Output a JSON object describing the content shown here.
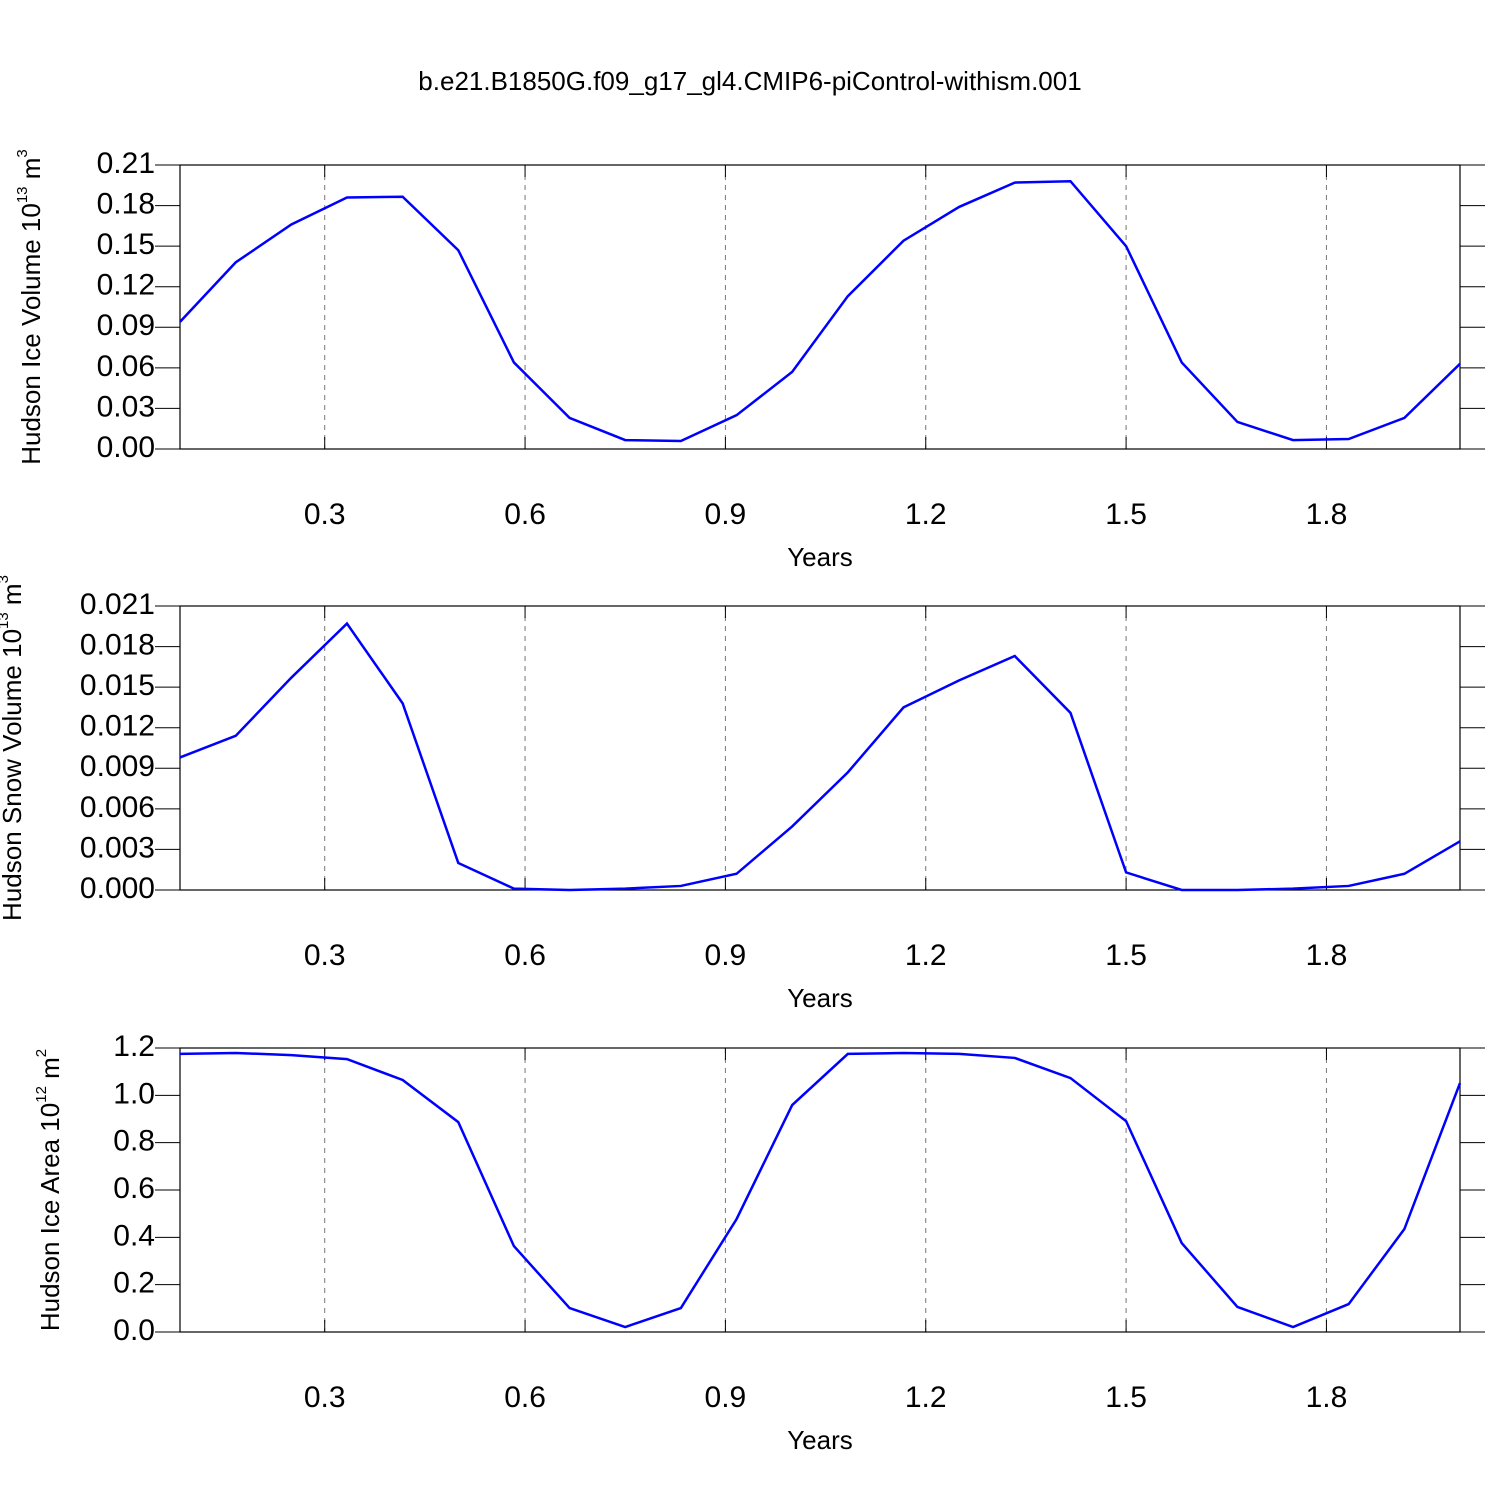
{
  "chart_data": [
    {
      "type": "line",
      "title": "b.e21.B1850G.f09_g17_gl4.CMIP6-piControl-withism.001",
      "xlabel": "Years",
      "ylabel": "Hudson Ice Volume 10",
      "ylabel_exponent": "13",
      "ylabel_unit": " m",
      "ylabel_unit_exponent": "3",
      "x": [
        0.0833,
        0.1667,
        0.25,
        0.3333,
        0.4167,
        0.5,
        0.5833,
        0.6667,
        0.75,
        0.8333,
        0.9167,
        1.0,
        1.0833,
        1.1667,
        1.25,
        1.3333,
        1.4167,
        1.5,
        1.5833,
        1.6667,
        1.75,
        1.8333,
        1.9167,
        2.0
      ],
      "series": [
        {
          "color": "#0000ff",
          "values": [
            0.094,
            0.138,
            0.166,
            0.186,
            0.1865,
            0.147,
            0.064,
            0.023,
            0.0066,
            0.0059,
            0.025,
            0.057,
            0.113,
            0.154,
            0.179,
            0.197,
            0.198,
            0.15,
            0.064,
            0.02,
            0.0066,
            0.0074,
            0.023,
            0.063
          ]
        }
      ],
      "xlim": [
        0.0833,
        2.0
      ],
      "xticks": [
        0.3,
        0.6,
        0.9,
        1.2,
        1.5,
        1.8
      ],
      "ylim": [
        0,
        0.21
      ],
      "yticks": [
        {
          "value": 0,
          "label": "0.00"
        },
        0.03,
        0.06,
        0.09,
        0.12,
        0.15,
        0.18,
        0.21
      ],
      "grid": "x-dashed"
    },
    {
      "type": "line",
      "xlabel": "Years",
      "ylabel": "Hudson Snow Volume 10",
      "ylabel_exponent": "13",
      "ylabel_unit": " m",
      "ylabel_unit_exponent": "3",
      "x": [
        0.0833,
        0.1667,
        0.25,
        0.3333,
        0.4167,
        0.5,
        0.5833,
        0.6667,
        0.75,
        0.8333,
        0.9167,
        1.0,
        1.0833,
        1.1667,
        1.25,
        1.3333,
        1.4167,
        1.5,
        1.5833,
        1.6667,
        1.75,
        1.8333,
        1.9167,
        2.0
      ],
      "series": [
        {
          "color": "#0000ff",
          "values": [
            0.0098,
            0.0114,
            0.0157,
            0.0197,
            0.0138,
            0.002,
            0.0001,
            0,
            0.0001,
            0.0003,
            0.0012,
            0.0047,
            0.0087,
            0.0135,
            0.0155,
            0.0173,
            0.0131,
            0.0013,
            0,
            0,
            0.0001,
            0.0003,
            0.0012,
            0.0036
          ]
        }
      ],
      "xlim": [
        0.0833,
        2.0
      ],
      "xticks": [
        0.3,
        0.6,
        0.9,
        1.2,
        1.5,
        1.8
      ],
      "ylim": [
        0,
        0.021
      ],
      "yticks": [
        {
          "value": 0,
          "label": "0.000"
        },
        0.003,
        0.006,
        0.009,
        0.012,
        0.015,
        0.018,
        0.021
      ],
      "grid": "x-dashed"
    },
    {
      "type": "line",
      "xlabel": "Years",
      "ylabel": "Hudson Ice Area 10",
      "ylabel_exponent": "12",
      "ylabel_unit": " m",
      "ylabel_unit_exponent": "2",
      "x": [
        0.0833,
        0.1667,
        0.25,
        0.3333,
        0.4167,
        0.5,
        0.5833,
        0.6667,
        0.75,
        0.8333,
        0.9167,
        1.0,
        1.0833,
        1.1667,
        1.25,
        1.3333,
        1.4167,
        1.5,
        1.5833,
        1.6667,
        1.75,
        1.8333,
        1.9167,
        2.0
      ],
      "series": [
        {
          "color": "#0000ff",
          "values": [
            1.175,
            1.179,
            1.17,
            1.153,
            1.065,
            0.887,
            0.363,
            0.101,
            0.021,
            0.101,
            0.477,
            0.959,
            1.175,
            1.179,
            1.175,
            1.158,
            1.073,
            0.891,
            0.376,
            0.106,
            0.021,
            0.118,
            0.435,
            1.052
          ]
        }
      ],
      "xlim": [
        0.0833,
        2.0
      ],
      "xticks": [
        0.3,
        0.6,
        0.9,
        1.2,
        1.5,
        1.8
      ],
      "ylim": [
        0,
        1.2
      ],
      "yticks": [
        {
          "value": 0,
          "label": "0.0"
        },
        0.2,
        0.4,
        0.6,
        0.8,
        {
          "value": 1,
          "label": "1.0"
        },
        1.2
      ],
      "grid": "x-dashed"
    }
  ]
}
